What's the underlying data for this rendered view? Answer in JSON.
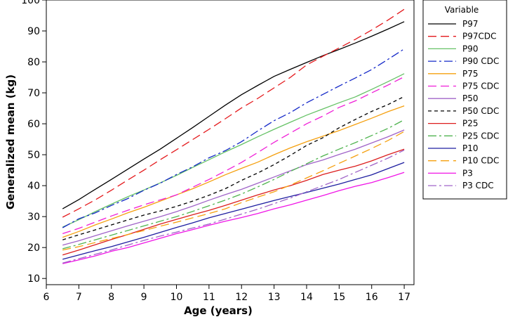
{
  "chart_data": {
    "type": "line",
    "xlabel": "Age (years)",
    "ylabel": "Generalized mean (kg)",
    "xlim": [
      6,
      17.3
    ],
    "ylim": [
      8,
      100
    ],
    "x_ticks": [
      6,
      7,
      8,
      9,
      10,
      11,
      12,
      13,
      14,
      15,
      16,
      17
    ],
    "y_ticks": [
      10,
      20,
      30,
      40,
      50,
      60,
      70,
      80,
      90,
      100
    ],
    "grid": false,
    "legend": {
      "title": "Variable",
      "position": "right"
    },
    "x": [
      6.5,
      7,
      7.5,
      8,
      8.5,
      9,
      9.5,
      10,
      10.5,
      11,
      11.5,
      12,
      12.5,
      13,
      13.5,
      14,
      14.5,
      15,
      15.5,
      16,
      16.5,
      17
    ],
    "series": [
      {
        "name": "P97",
        "color": "#000000",
        "dash": "solid",
        "values": [
          32.5,
          35.5,
          38.8,
          42.0,
          45.3,
          48.6,
          51.8,
          55.3,
          58.8,
          62.4,
          66.0,
          69.4,
          72.4,
          75.3,
          77.6,
          79.8,
          82.0,
          84.0,
          86.1,
          88.3,
          90.6,
          93.0
        ]
      },
      {
        "name": "P97CDC",
        "color": "#e4191c",
        "dash": "dash",
        "values": [
          29.8,
          32.5,
          35.4,
          38.5,
          41.8,
          45.0,
          48.4,
          51.6,
          54.9,
          58.2,
          61.6,
          65.1,
          68.2,
          71.6,
          75.0,
          79.0,
          81.8,
          84.5,
          87.3,
          90.3,
          93.5,
          97.0
        ]
      },
      {
        "name": "P90",
        "color": "#66c266",
        "dash": "solid",
        "values": [
          26.6,
          29.0,
          31.6,
          34.0,
          36.4,
          38.6,
          40.9,
          43.3,
          45.9,
          48.4,
          50.9,
          53.3,
          55.8,
          58.2,
          60.5,
          62.8,
          64.8,
          66.8,
          68.7,
          71.1,
          73.6,
          76.2
        ]
      },
      {
        "name": "P90 CDC",
        "color": "#1428c8",
        "dash": "dashdot",
        "values": [
          26.4,
          29.3,
          31.2,
          33.6,
          35.8,
          38.5,
          40.8,
          43.6,
          46.1,
          49.0,
          51.3,
          54.2,
          57.7,
          61.0,
          63.6,
          66.8,
          69.5,
          72.2,
          74.8,
          77.5,
          80.8,
          84.2
        ]
      },
      {
        "name": "P75",
        "color": "#f5a00f",
        "dash": "solid",
        "values": [
          23.3,
          25.2,
          27.3,
          29.2,
          31.2,
          33.0,
          35.0,
          37.0,
          39.0,
          41.2,
          43.5,
          45.6,
          47.6,
          50.0,
          52.2,
          54.2,
          56.0,
          57.8,
          59.8,
          61.8,
          63.9,
          65.8
        ]
      },
      {
        "name": "P75 CDC",
        "color": "#f01ed7",
        "dash": "dash",
        "values": [
          24.5,
          26.2,
          28.2,
          30.2,
          32.0,
          33.8,
          35.4,
          37.0,
          39.5,
          42.0,
          44.7,
          47.5,
          50.7,
          54.0,
          57.0,
          60.0,
          62.5,
          65.3,
          67.4,
          70.0,
          72.5,
          75.2
        ]
      },
      {
        "name": "P50",
        "color": "#a064c8",
        "dash": "solid",
        "values": [
          20.8,
          22.2,
          23.8,
          25.4,
          27.0,
          28.5,
          30.0,
          31.6,
          33.4,
          35.3,
          37.1,
          38.8,
          40.8,
          42.8,
          44.8,
          46.8,
          48.3,
          50.1,
          51.8,
          53.8,
          55.8,
          58.0
        ]
      },
      {
        "name": "P50 CDC",
        "color": "#000000",
        "dash": "shortdash",
        "values": [
          22.5,
          24.1,
          25.7,
          27.3,
          28.9,
          30.5,
          31.8,
          33.3,
          35.0,
          36.9,
          39.0,
          41.7,
          44.1,
          46.8,
          49.8,
          53.0,
          55.5,
          58.7,
          61.4,
          64.0,
          66.2,
          68.8
        ]
      },
      {
        "name": "P25",
        "color": "#dc1e1e",
        "dash": "solid",
        "values": [
          17.6,
          19.2,
          20.9,
          22.6,
          24.2,
          25.9,
          27.6,
          29.1,
          30.6,
          32.0,
          33.6,
          35.3,
          37.0,
          38.6,
          40.0,
          41.7,
          43.6,
          45.0,
          46.3,
          48.0,
          50.0,
          51.8
        ]
      },
      {
        "name": "P25 CDC",
        "color": "#50b450",
        "dash": "dashdot",
        "values": [
          19.6,
          21.0,
          22.5,
          24.0,
          25.5,
          27.0,
          28.5,
          30.0,
          31.7,
          33.5,
          35.3,
          37.3,
          39.6,
          42.0,
          44.6,
          47.1,
          49.6,
          51.8,
          53.9,
          56.2,
          58.5,
          61.3
        ]
      },
      {
        "name": "P10",
        "color": "#1e1ea0",
        "dash": "solid",
        "values": [
          16.2,
          17.6,
          19.0,
          20.3,
          21.8,
          23.3,
          24.9,
          26.5,
          28.0,
          29.6,
          31.0,
          32.4,
          33.8,
          35.2,
          36.5,
          37.8,
          39.2,
          40.5,
          42.0,
          43.5,
          45.5,
          47.5
        ]
      },
      {
        "name": "P10 CDC",
        "color": "#f5a00f",
        "dash": "dash",
        "values": [
          19.2,
          20.3,
          21.6,
          22.9,
          24.2,
          25.5,
          26.9,
          28.2,
          29.6,
          31.0,
          32.5,
          34.5,
          36.3,
          38.0,
          40.2,
          42.5,
          44.8,
          47.2,
          49.6,
          52.0,
          54.6,
          57.5
        ]
      },
      {
        "name": "P3",
        "color": "#f014e6",
        "dash": "solid",
        "values": [
          14.8,
          16.0,
          17.3,
          18.8,
          20.0,
          21.5,
          23.0,
          24.5,
          25.8,
          27.2,
          28.5,
          29.7,
          31.0,
          32.5,
          33.8,
          35.3,
          36.8,
          38.4,
          39.8,
          41.0,
          42.6,
          44.3
        ]
      },
      {
        "name": "P3 CDC",
        "color": "#a064c8",
        "dash": "dashdot",
        "values": [
          15.0,
          16.4,
          17.8,
          19.2,
          20.8,
          22.3,
          23.7,
          25.0,
          26.3,
          27.6,
          29.2,
          30.8,
          32.4,
          34.2,
          36.0,
          38.0,
          40.0,
          42.0,
          44.3,
          46.6,
          48.9,
          51.5
        ]
      }
    ]
  }
}
